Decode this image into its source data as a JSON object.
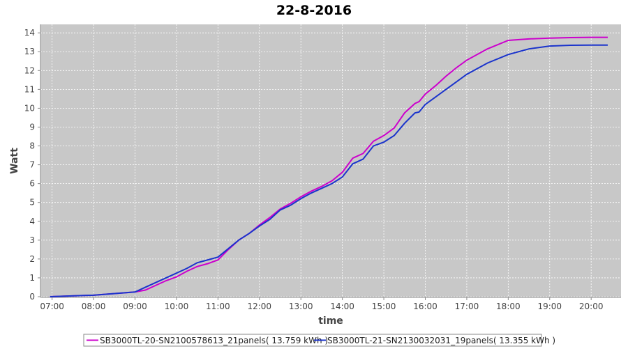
{
  "chart_data": {
    "type": "line",
    "title": "22-8-2016",
    "x_label": "time",
    "y_label": "Watt",
    "x": [
      6.95,
      8,
      9,
      9.25,
      9.5,
      9.75,
      10,
      10.25,
      10.5,
      10.75,
      11,
      11.25,
      11.5,
      11.75,
      12,
      12.25,
      12.5,
      12.75,
      13,
      13.25,
      13.5,
      13.75,
      14,
      14.25,
      14.5,
      14.75,
      15,
      15.25,
      15.5,
      15.75,
      15.85,
      16,
      16.25,
      16.5,
      16.75,
      17,
      17.5,
      18,
      18.5,
      19,
      19.5,
      20,
      20.4
    ],
    "series": [
      {
        "name": "SB3000TL-20-SN2100578613_21panels( 13.759 kWh )",
        "color": "#cc00cc",
        "values": [
          0,
          0.08,
          0.25,
          0.35,
          0.6,
          0.85,
          1.05,
          1.35,
          1.6,
          1.75,
          1.95,
          2.5,
          3.0,
          3.35,
          3.8,
          4.2,
          4.65,
          4.95,
          5.3,
          5.6,
          5.85,
          6.15,
          6.6,
          7.35,
          7.6,
          8.25,
          8.55,
          8.95,
          9.75,
          10.25,
          10.35,
          10.75,
          11.2,
          11.7,
          12.15,
          12.55,
          13.15,
          13.6,
          13.68,
          13.72,
          13.75,
          13.76,
          13.76
        ]
      },
      {
        "name": "SB3000TL-21-SN2130032031_19panels( 13.355 kWh )",
        "color": "#1a33cc",
        "values": [
          0,
          0.08,
          0.25,
          0.5,
          0.75,
          1.0,
          1.25,
          1.5,
          1.8,
          1.95,
          2.1,
          2.55,
          3.0,
          3.35,
          3.75,
          4.1,
          4.6,
          4.85,
          5.2,
          5.5,
          5.75,
          6.0,
          6.35,
          7.05,
          7.3,
          8.0,
          8.2,
          8.55,
          9.2,
          9.75,
          9.8,
          10.2,
          10.6,
          11.0,
          11.4,
          11.8,
          12.4,
          12.85,
          13.15,
          13.3,
          13.34,
          13.35,
          13.35
        ]
      }
    ],
    "xlim": [
      6.72,
      20.72
    ],
    "ylim": [
      0,
      14.45
    ],
    "xticks": [
      {
        "value": 7,
        "label": "07:00"
      },
      {
        "value": 8,
        "label": "08:00"
      },
      {
        "value": 9,
        "label": "09:00"
      },
      {
        "value": 10,
        "label": "10:00"
      },
      {
        "value": 11,
        "label": "11:00"
      },
      {
        "value": 12,
        "label": "12:00"
      },
      {
        "value": 13,
        "label": "13:00"
      },
      {
        "value": 14,
        "label": "14:00"
      },
      {
        "value": 15,
        "label": "15:00"
      },
      {
        "value": 16,
        "label": "16:00"
      },
      {
        "value": 17,
        "label": "17:00"
      },
      {
        "value": 18,
        "label": "18:00"
      },
      {
        "value": 19,
        "label": "19:00"
      },
      {
        "value": 20,
        "label": "20:00"
      }
    ],
    "yticks": [
      0,
      1,
      2,
      3,
      4,
      5,
      6,
      7,
      8,
      9,
      10,
      11,
      12,
      13,
      14
    ],
    "grid": true,
    "legend": "bottom"
  }
}
